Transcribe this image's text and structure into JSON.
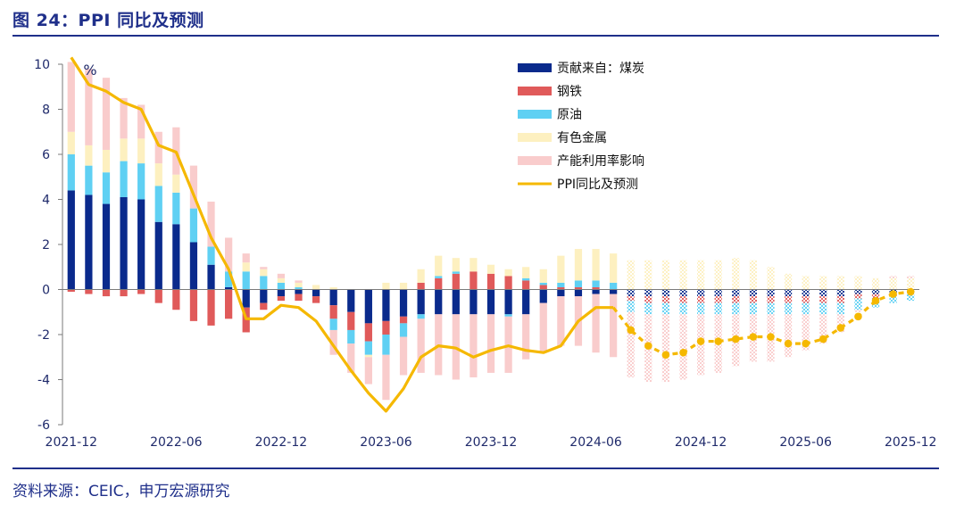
{
  "header": {
    "title": "图 24：PPI 同比及预测"
  },
  "footer": {
    "source": "资料来源：CEIC，申万宏源研究"
  },
  "chart_data": {
    "type": "bar",
    "unit_label": "%",
    "ylim": [
      -6,
      10
    ],
    "yticks": [
      "10",
      "8",
      "6",
      "4",
      "2",
      "0",
      "-2",
      "-4",
      "-6"
    ],
    "xticks": [
      "2021-12",
      "2022-06",
      "2022-12",
      "2023-06",
      "2023-12",
      "2024-06",
      "2024-12",
      "2025-06",
      "2025-12"
    ],
    "forecast_start_index": 32,
    "categories": [
      "2021-12",
      "2022-01",
      "2022-02",
      "2022-03",
      "2022-04",
      "2022-05",
      "2022-06",
      "2022-07",
      "2022-08",
      "2022-09",
      "2022-10",
      "2022-11",
      "2022-12",
      "2023-01",
      "2023-02",
      "2023-03",
      "2023-04",
      "2023-05",
      "2023-06",
      "2023-07",
      "2023-08",
      "2023-09",
      "2023-10",
      "2023-11",
      "2023-12",
      "2024-01",
      "2024-02",
      "2024-03",
      "2024-04",
      "2024-05",
      "2024-06",
      "2024-07",
      "2024-08",
      "2024-09",
      "2024-10",
      "2024-11",
      "2024-12",
      "2025-01",
      "2025-02",
      "2025-03",
      "2025-04",
      "2025-05",
      "2025-06",
      "2025-07",
      "2025-08",
      "2025-09",
      "2025-10",
      "2025-11",
      "2025-12"
    ],
    "series": [
      {
        "name": "贡献来自：煤炭",
        "kind": "bar",
        "color": "#0a2a8c",
        "values": [
          4.4,
          4.2,
          3.8,
          4.1,
          4.0,
          3.0,
          2.9,
          2.1,
          1.1,
          0.1,
          -0.8,
          -0.6,
          -0.3,
          -0.2,
          -0.3,
          -0.7,
          -1.0,
          -1.5,
          -1.4,
          -1.2,
          -1.1,
          -1.1,
          -1.1,
          -1.1,
          -1.1,
          -1.1,
          -1.1,
          -0.6,
          -0.3,
          -0.3,
          -0.2,
          -0.2,
          -0.3,
          -0.3,
          -0.3,
          -0.3,
          -0.3,
          -0.3,
          -0.3,
          -0.3,
          -0.3,
          -0.3,
          -0.3,
          -0.3,
          -0.3,
          -0.2,
          -0.2,
          -0.2,
          -0.1
        ]
      },
      {
        "name": "钢铁",
        "kind": "bar",
        "color": "#e05a5a",
        "values": [
          -0.1,
          -0.2,
          -0.3,
          -0.3,
          -0.2,
          -0.6,
          -0.9,
          -1.4,
          -1.6,
          -1.3,
          -1.1,
          -0.3,
          -0.2,
          -0.3,
          -0.3,
          -0.6,
          -0.8,
          -0.8,
          -0.6,
          -0.3,
          0.3,
          0.5,
          0.7,
          0.8,
          0.7,
          0.6,
          0.4,
          0.2,
          0.1,
          0.1,
          0.1,
          0.0,
          -0.2,
          -0.3,
          -0.3,
          -0.3,
          -0.3,
          -0.3,
          -0.3,
          -0.3,
          -0.3,
          -0.3,
          -0.3,
          -0.3,
          -0.3,
          -0.2,
          -0.2,
          -0.1,
          -0.1
        ]
      },
      {
        "name": "原油",
        "kind": "bar",
        "color": "#5fd0f3",
        "values": [
          1.6,
          1.3,
          1.4,
          1.6,
          1.6,
          1.6,
          1.4,
          1.5,
          0.8,
          0.7,
          0.8,
          0.6,
          0.3,
          0.1,
          0.0,
          -0.5,
          -0.6,
          -0.6,
          -0.9,
          -0.6,
          -0.2,
          0.1,
          0.1,
          0.0,
          0.0,
          -0.1,
          0.1,
          0.1,
          0.2,
          0.3,
          0.3,
          0.3,
          -0.5,
          -0.5,
          -0.5,
          -0.5,
          -0.5,
          -0.5,
          -0.5,
          -0.5,
          -0.5,
          -0.5,
          -0.5,
          -0.5,
          -0.5,
          -0.5,
          -0.4,
          -0.3,
          -0.3
        ]
      },
      {
        "name": "有色金属",
        "kind": "bar",
        "color": "#fdf0c0",
        "values": [
          1.0,
          0.9,
          1.0,
          1.0,
          1.1,
          1.0,
          0.8,
          0.0,
          0.0,
          0.0,
          0.4,
          0.3,
          0.2,
          0.2,
          0.2,
          0.1,
          0.0,
          -0.1,
          0.3,
          0.3,
          0.6,
          0.9,
          0.6,
          0.6,
          0.4,
          0.3,
          0.5,
          0.6,
          1.2,
          1.4,
          1.4,
          1.3,
          1.3,
          1.3,
          1.3,
          1.3,
          1.3,
          1.3,
          1.4,
          1.3,
          1.0,
          0.7,
          0.6,
          0.6,
          0.6,
          0.6,
          0.5,
          0.5,
          0.5
        ]
      },
      {
        "name": "产能利用率影响",
        "kind": "bar",
        "color": "#f9cccc",
        "values": [
          3.1,
          3.4,
          3.2,
          1.8,
          1.5,
          1.4,
          2.1,
          1.9,
          2.0,
          1.5,
          0.4,
          0.1,
          0.2,
          0.1,
          0.0,
          -1.1,
          -1.3,
          -1.2,
          -2.0,
          -1.7,
          -2.4,
          -2.7,
          -2.9,
          -2.8,
          -2.6,
          -2.5,
          -2.0,
          -2.2,
          -2.2,
          -2.2,
          -2.6,
          -2.8,
          -2.9,
          -3.0,
          -3.0,
          -2.9,
          -2.7,
          -2.6,
          -2.3,
          -2.1,
          -2.1,
          -1.9,
          -1.6,
          -1.3,
          -0.8,
          -0.1,
          0.0,
          0.1,
          0.1
        ]
      },
      {
        "name": "PPI同比及预测",
        "kind": "line",
        "color": "#f5b800",
        "values": [
          10.3,
          9.1,
          8.8,
          8.3,
          8.0,
          6.4,
          6.1,
          4.2,
          2.3,
          0.9,
          -1.3,
          -1.3,
          -0.7,
          -0.8,
          -1.4,
          -2.5,
          -3.6,
          -4.6,
          -5.4,
          -4.4,
          -3.0,
          -2.5,
          -2.6,
          -3.0,
          -2.7,
          -2.5,
          -2.7,
          -2.8,
          -2.5,
          -1.4,
          -0.8,
          -0.8,
          -1.8,
          -2.5,
          -2.9,
          -2.8,
          -2.3,
          -2.3,
          -2.2,
          -2.1,
          -2.1,
          -2.4,
          -2.4,
          -2.2,
          -1.7,
          -1.2,
          -0.5,
          -0.2,
          -0.1
        ]
      }
    ]
  }
}
